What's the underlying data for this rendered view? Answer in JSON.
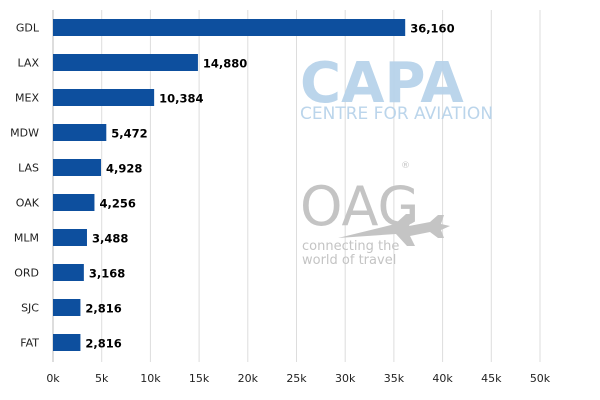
{
  "chart_data": {
    "type": "bar",
    "orientation": "horizontal",
    "categories": [
      "GDL",
      "LAX",
      "MEX",
      "MDW",
      "LAS",
      "OAK",
      "MLM",
      "ORD",
      "SJC",
      "FAT"
    ],
    "values": [
      36160,
      14880,
      10384,
      5472,
      4928,
      4256,
      3488,
      3168,
      2816,
      2816
    ],
    "value_labels": [
      "36,160",
      "14,880",
      "10,384",
      "5,472",
      "4,928",
      "4,256",
      "3,488",
      "3,168",
      "2,816",
      "2,816"
    ],
    "xlim": [
      0,
      50000
    ],
    "x_ticks": [
      0,
      5000,
      10000,
      15000,
      20000,
      25000,
      30000,
      35000,
      40000,
      45000,
      50000
    ],
    "x_tick_labels": [
      "0k",
      "5k",
      "10k",
      "15k",
      "20k",
      "25k",
      "30k",
      "35k",
      "40k",
      "45k",
      "50k"
    ],
    "grid": "vertical",
    "bar_color": "#0d4f9e",
    "grid_color": "#dddddd",
    "title": "",
    "xlabel": "",
    "ylabel": ""
  },
  "watermarks": {
    "capa_text": "CAPA",
    "capa_subtitle": "CENTRE FOR AVIATION",
    "capa_color": "#b8d3ea",
    "oag_text": "OAG",
    "oag_registered": "®",
    "oag_tagline_line1": "connecting the",
    "oag_tagline_line2": "world of travel",
    "oag_color": "#c4c4c4",
    "oag_icon": "airplane-icon"
  }
}
